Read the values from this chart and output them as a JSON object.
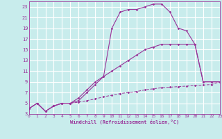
{
  "xlabel": "Windchill (Refroidissement éolien,°C)",
  "bg_color": "#c8ecec",
  "grid_color": "#ffffff",
  "line_color": "#993399",
  "xmin": 0,
  "xmax": 23,
  "ymin": 3,
  "ymax": 24,
  "yticks": [
    3,
    5,
    7,
    9,
    11,
    13,
    15,
    17,
    19,
    21,
    23
  ],
  "xticks": [
    0,
    1,
    2,
    3,
    4,
    5,
    6,
    7,
    8,
    9,
    10,
    11,
    12,
    13,
    14,
    15,
    16,
    17,
    18,
    19,
    20,
    21,
    22,
    23
  ],
  "curve1_x": [
    0,
    1,
    2,
    3,
    4,
    5,
    6,
    7,
    8,
    9,
    10,
    11,
    12,
    13,
    14,
    15,
    16,
    17,
    18,
    19,
    20,
    21,
    22,
    23
  ],
  "curve1_y": [
    4,
    5,
    3.5,
    4.5,
    5,
    5,
    6,
    7.5,
    9,
    10,
    19,
    22,
    22.5,
    22.5,
    23,
    23.5,
    23.5,
    22,
    19,
    18.5,
    16,
    9,
    9,
    9
  ],
  "curve2_x": [
    0,
    1,
    2,
    3,
    4,
    5,
    6,
    7,
    8,
    9,
    10,
    11,
    12,
    13,
    14,
    15,
    16,
    17,
    18,
    19,
    20,
    21,
    22,
    23
  ],
  "curve2_y": [
    4,
    5,
    3.5,
    4.5,
    5,
    5,
    5.5,
    7,
    8.5,
    10,
    11,
    12,
    13,
    14,
    15,
    15.5,
    16,
    16,
    16,
    16,
    16,
    9,
    9,
    9
  ],
  "curve3_x": [
    0,
    1,
    2,
    3,
    4,
    5,
    6,
    7,
    8,
    9,
    10,
    11,
    12,
    13,
    14,
    15,
    16,
    17,
    18,
    19,
    20,
    21,
    22,
    23
  ],
  "curve3_y": [
    4,
    5,
    3.5,
    4.5,
    5,
    5,
    5.2,
    5.5,
    5.8,
    6.2,
    6.5,
    6.8,
    7,
    7.2,
    7.5,
    7.7,
    7.9,
    8,
    8.1,
    8.2,
    8.3,
    8.4,
    8.5,
    9
  ]
}
